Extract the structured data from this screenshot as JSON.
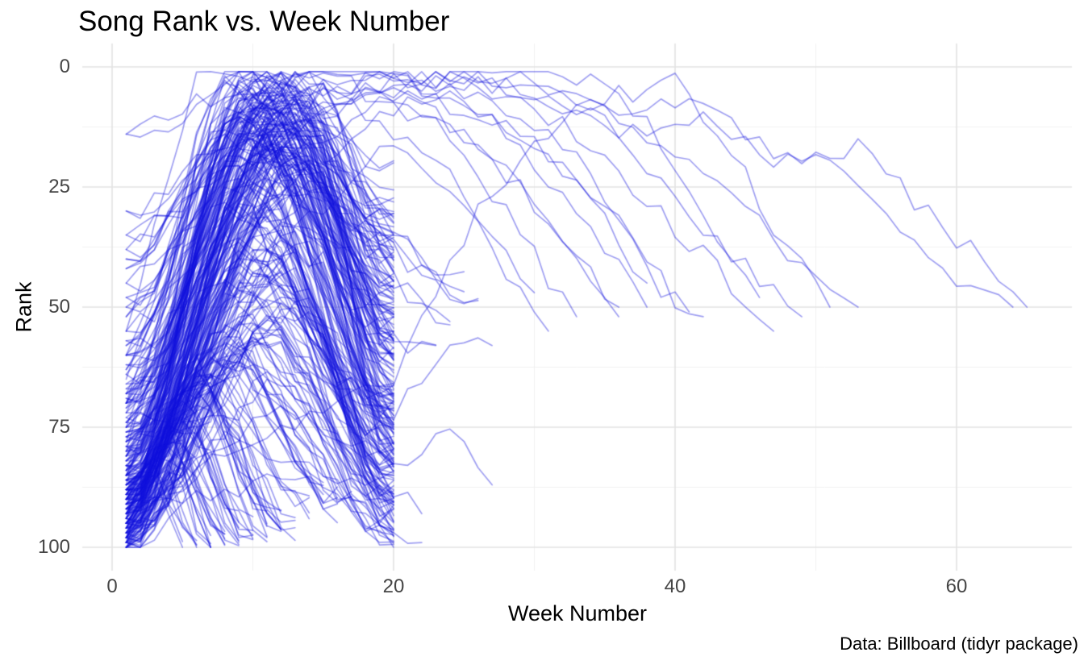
{
  "chart": {
    "title": "Song Rank vs. Week Number",
    "x_axis_title": "Week Number",
    "y_axis_title": "Rank",
    "caption": "Data: Billboard (tidyr package)"
  },
  "chart_data": {
    "type": "line",
    "title": "Song Rank vs. Week Number",
    "xlabel": "Week Number",
    "ylabel": "Rank",
    "caption": "Data: Billboard (tidyr package)",
    "legend": "none",
    "grid": "on",
    "x_axis": {
      "ticks": [
        0,
        20,
        40,
        60
      ],
      "minor_ticks": [
        10,
        30,
        50
      ],
      "range": [
        -2.2,
        68.2
      ]
    },
    "y_axis": {
      "ticks": [
        0,
        25,
        50,
        75,
        100
      ],
      "minor_ticks": [
        12.5,
        37.5,
        62.5,
        87.5
      ],
      "range": [
        -5,
        105
      ],
      "reversed": true
    },
    "line_color": "#1010DC",
    "line_alpha": 0.4,
    "grid_major_color": "#E3E3E3",
    "grid_minor_color": "#F0F0F0",
    "background_color": "#FFFFFF",
    "description": "Each line is one song's weekly Billboard rank trajectory (rank 1 = top). Most songs drop off at week 20; a few long-running hits persist to week 65, exiting near rank 50.",
    "songs_compact_format": "[entry_rank, peak_rank, peak_week, exit_rank, exit_week] - weekly ranks interpolated between these anchor values",
    "songs_compact": [
      [
        81,
        1,
        9,
        62,
        20
      ],
      [
        76,
        2,
        12,
        55,
        20
      ],
      [
        90,
        3,
        8,
        70,
        20
      ],
      [
        68,
        1,
        14,
        38,
        20
      ],
      [
        85,
        4,
        10,
        72,
        20
      ],
      [
        72,
        2,
        11,
        50,
        20
      ],
      [
        95,
        5,
        9,
        80,
        20
      ],
      [
        60,
        3,
        13,
        45,
        20
      ],
      [
        78,
        1,
        10,
        58,
        20
      ],
      [
        88,
        6,
        12,
        75,
        20
      ],
      [
        70,
        2,
        8,
        52,
        20
      ],
      [
        83,
        4,
        14,
        60,
        20
      ],
      [
        66,
        1,
        11,
        40,
        20
      ],
      [
        92,
        7,
        9,
        85,
        20
      ],
      [
        74,
        3,
        12,
        57,
        20
      ],
      [
        64,
        5,
        15,
        42,
        20
      ],
      [
        87,
        2,
        10,
        66,
        20
      ],
      [
        79,
        6,
        13,
        70,
        20
      ],
      [
        85,
        12,
        9,
        70,
        20
      ],
      [
        92,
        18,
        11,
        88,
        20
      ],
      [
        77,
        15,
        12,
        65,
        20
      ],
      [
        96,
        22,
        10,
        90,
        20
      ],
      [
        70,
        11,
        8,
        55,
        20
      ],
      [
        88,
        25,
        13,
        80,
        20
      ],
      [
        82,
        14,
        10,
        72,
        20
      ],
      [
        98,
        30,
        9,
        95,
        20
      ],
      [
        75,
        19,
        14,
        62,
        20
      ],
      [
        90,
        16,
        11,
        78,
        20
      ],
      [
        68,
        13,
        12,
        50,
        20
      ],
      [
        94,
        28,
        10,
        85,
        20
      ],
      [
        80,
        21,
        9,
        74,
        20
      ],
      [
        73,
        17,
        13,
        58,
        20
      ],
      [
        97,
        33,
        11,
        92,
        20
      ],
      [
        86,
        24,
        12,
        76,
        20
      ],
      [
        71,
        12,
        10,
        60,
        20
      ],
      [
        89,
        27,
        8,
        82,
        20
      ],
      [
        78,
        20,
        14,
        68,
        20
      ],
      [
        93,
        15,
        9,
        84,
        20
      ],
      [
        67,
        18,
        11,
        48,
        20
      ],
      [
        99,
        35,
        12,
        96,
        20
      ],
      [
        84,
        23,
        10,
        73,
        20
      ],
      [
        76,
        13,
        13,
        63,
        20
      ],
      [
        91,
        29,
        9,
        87,
        20
      ],
      [
        69,
        16,
        12,
        54,
        20
      ],
      [
        95,
        31,
        11,
        90,
        20
      ],
      [
        81,
        22,
        8,
        70,
        20
      ],
      [
        74,
        14,
        10,
        59,
        20
      ],
      [
        87,
        26,
        13,
        79,
        20
      ],
      [
        90,
        42,
        9,
        85,
        20
      ],
      [
        96,
        55,
        11,
        93,
        20
      ],
      [
        83,
        38,
        10,
        76,
        20
      ],
      [
        99,
        60,
        8,
        97,
        20
      ],
      [
        87,
        45,
        12,
        80,
        20
      ],
      [
        93,
        52,
        9,
        90,
        20
      ],
      [
        79,
        36,
        13,
        70,
        20
      ],
      [
        97,
        58,
        10,
        94,
        20
      ],
      [
        85,
        40,
        11,
        78,
        20
      ],
      [
        91,
        48,
        12,
        86,
        20
      ],
      [
        100,
        63,
        9,
        98,
        20
      ],
      [
        88,
        44,
        10,
        82,
        20
      ],
      [
        94,
        50,
        13,
        91,
        20
      ],
      [
        81,
        37,
        8,
        73,
        20
      ],
      [
        98,
        56,
        11,
        95,
        20
      ],
      [
        86,
        43,
        12,
        80,
        20
      ],
      [
        92,
        47,
        9,
        88,
        20
      ],
      [
        77,
        39,
        14,
        68,
        20
      ],
      [
        95,
        53,
        10,
        92,
        20
      ],
      [
        89,
        41,
        11,
        84,
        20
      ],
      [
        100,
        65,
        12,
        99,
        20
      ],
      [
        84,
        46,
        8,
        77,
        20
      ],
      [
        96,
        51,
        13,
        93,
        20
      ],
      [
        80,
        38,
        9,
        72,
        20
      ],
      [
        99,
        59,
        10,
        96,
        20
      ],
      [
        95,
        72,
        5,
        98,
        9
      ],
      [
        90,
        68,
        6,
        95,
        12
      ],
      [
        98,
        80,
        4,
        100,
        7
      ],
      [
        88,
        65,
        7,
        92,
        14
      ],
      [
        93,
        75,
        5,
        97,
        10
      ],
      [
        97,
        70,
        6,
        99,
        11
      ],
      [
        85,
        62,
        8,
        90,
        15
      ],
      [
        99,
        85,
        3,
        100,
        6
      ],
      [
        91,
        66,
        7,
        96,
        13
      ],
      [
        96,
        78,
        5,
        99,
        9
      ],
      [
        87,
        60,
        8,
        93,
        16
      ],
      [
        94,
        73,
        4,
        98,
        8
      ],
      [
        89,
        64,
        6,
        94,
        12
      ],
      [
        100,
        82,
        5,
        100,
        7
      ],
      [
        92,
        70,
        7,
        97,
        13
      ],
      [
        86,
        58,
        9,
        91,
        17
      ],
      [
        98,
        76,
        4,
        100,
        8
      ],
      [
        90,
        63,
        6,
        95,
        11
      ],
      [
        95,
        74,
        5,
        98,
        10
      ],
      [
        83,
        55,
        8,
        88,
        15
      ],
      [
        97,
        79,
        4,
        99,
        7
      ],
      [
        91,
        67,
        6,
        96,
        12
      ],
      [
        88,
        61,
        7,
        92,
        14
      ],
      [
        99,
        83,
        3,
        100,
        5
      ],
      [
        93,
        71,
        5,
        97,
        9
      ],
      [
        85,
        57,
        8,
        90,
        16
      ],
      [
        96,
        77,
        4,
        99,
        8
      ],
      [
        89,
        62,
        6,
        93,
        11
      ],
      [
        94,
        69,
        5,
        96,
        10
      ],
      [
        100,
        86,
        4,
        100,
        6
      ],
      [
        55,
        8,
        12,
        35,
        20
      ],
      [
        48,
        15,
        10,
        40,
        20
      ],
      [
        62,
        10,
        13,
        44,
        20
      ],
      [
        40,
        6,
        11,
        30,
        20
      ],
      [
        58,
        12,
        9,
        46,
        20
      ],
      [
        35,
        9,
        14,
        28,
        20
      ],
      [
        52,
        7,
        10,
        38,
        20
      ],
      [
        45,
        11,
        12,
        33,
        20
      ],
      [
        63,
        14,
        8,
        50,
        20
      ],
      [
        30,
        5,
        13,
        22,
        20
      ],
      [
        57,
        9,
        11,
        41,
        20
      ],
      [
        42,
        13,
        9,
        36,
        20
      ],
      [
        50,
        6,
        12,
        29,
        20
      ],
      [
        38,
        10,
        10,
        31,
        20
      ],
      [
        60,
        8,
        14,
        47,
        20
      ],
      [
        14,
        2,
        11,
        34,
        20
      ],
      [
        82,
        20,
        12,
        52,
        24
      ],
      [
        75,
        18,
        10,
        48,
        26
      ],
      [
        88,
        30,
        11,
        60,
        23
      ],
      [
        70,
        16,
        13,
        45,
        25
      ],
      [
        97,
        10,
        13,
        55,
        20
      ],
      [
        89,
        8,
        11,
        48,
        20
      ],
      [
        94,
        20,
        14,
        75,
        20
      ],
      [
        99,
        25,
        15,
        85,
        20
      ],
      [
        93,
        12,
        12,
        62,
        20
      ],
      [
        86,
        7,
        10,
        45,
        20
      ],
      [
        98,
        16,
        13,
        72,
        20
      ],
      [
        91,
        9,
        12,
        52,
        20
      ],
      [
        95,
        14,
        11,
        68,
        20
      ],
      [
        88,
        11,
        14,
        58,
        20
      ],
      [
        100,
        18,
        13,
        78,
        20
      ],
      [
        90,
        6,
        11,
        50,
        20
      ]
    ],
    "songs_paths_format": "list of [week, rank] anchor points per long-running song; weekly ranks interpolated",
    "songs_paths": [
      [
        [
          1,
          90
        ],
        [
          10,
          55
        ],
        [
          20,
          72
        ],
        [
          25,
          57
        ],
        [
          27,
          58
        ]
      ],
      [
        [
          1,
          95
        ],
        [
          12,
          70
        ],
        [
          20,
          83
        ],
        [
          24,
          75
        ],
        [
          27,
          87
        ]
      ],
      [
        [
          1,
          98
        ],
        [
          8,
          78
        ],
        [
          20,
          88
        ],
        [
          22,
          93
        ]
      ],
      [
        [
          1,
          92
        ],
        [
          14,
          85
        ],
        [
          20,
          97
        ],
        [
          22,
          99
        ]
      ],
      [
        [
          1,
          87
        ],
        [
          8,
          25
        ],
        [
          14,
          5
        ],
        [
          22,
          2
        ],
        [
          30,
          4
        ],
        [
          38,
          10
        ],
        [
          41,
          6
        ],
        [
          48,
          20
        ],
        [
          53,
          17
        ],
        [
          57,
          28
        ],
        [
          61,
          38
        ],
        [
          65,
          50
        ]
      ],
      [
        [
          1,
          70
        ],
        [
          9,
          12
        ],
        [
          18,
          3
        ],
        [
          28,
          2
        ],
        [
          35,
          8
        ],
        [
          40,
          18
        ],
        [
          45,
          30
        ],
        [
          50,
          44
        ],
        [
          53,
          50
        ]
      ],
      [
        [
          1,
          80
        ],
        [
          10,
          8
        ],
        [
          20,
          2
        ],
        [
          30,
          5
        ],
        [
          36,
          15
        ],
        [
          42,
          33
        ],
        [
          46,
          45
        ],
        [
          49,
          52
        ]
      ],
      [
        [
          1,
          65
        ],
        [
          7,
          10
        ],
        [
          15,
          1
        ],
        [
          25,
          3
        ],
        [
          32,
          12
        ],
        [
          38,
          28
        ],
        [
          43,
          42
        ],
        [
          47,
          55
        ]
      ],
      [
        [
          1,
          90
        ],
        [
          12,
          20
        ],
        [
          20,
          6
        ],
        [
          27,
          10
        ],
        [
          33,
          22
        ],
        [
          37,
          35
        ],
        [
          40,
          48
        ],
        [
          42,
          52
        ]
      ],
      [
        [
          1,
          75
        ],
        [
          10,
          5
        ],
        [
          18,
          1
        ],
        [
          26,
          8
        ],
        [
          31,
          18
        ],
        [
          35,
          32
        ],
        [
          38,
          45
        ]
      ],
      [
        [
          1,
          85
        ],
        [
          11,
          15
        ],
        [
          19,
          4
        ],
        [
          24,
          12
        ],
        [
          29,
          25
        ],
        [
          33,
          40
        ],
        [
          36,
          50
        ]
      ],
      [
        [
          1,
          60
        ],
        [
          8,
          6
        ],
        [
          16,
          2
        ],
        [
          24,
          14
        ],
        [
          28,
          30
        ],
        [
          31,
          44
        ],
        [
          33,
          52
        ]
      ],
      [
        [
          1,
          78
        ],
        [
          9,
          18
        ],
        [
          17,
          8
        ],
        [
          23,
          20
        ],
        [
          27,
          34
        ],
        [
          30,
          47
        ]
      ],
      [
        [
          1,
          95
        ],
        [
          13,
          35
        ],
        [
          20,
          15
        ],
        [
          25,
          28
        ],
        [
          28,
          42
        ],
        [
          31,
          55
        ]
      ],
      [
        [
          1,
          98
        ],
        [
          8,
          80
        ],
        [
          15,
          72
        ],
        [
          20,
          65
        ],
        [
          26,
          30
        ],
        [
          33,
          8
        ],
        [
          40,
          3
        ],
        [
          44,
          18
        ],
        [
          48,
          38
        ],
        [
          51,
          50
        ]
      ],
      [
        [
          1,
          72
        ],
        [
          10,
          10
        ],
        [
          20,
          3
        ],
        [
          28,
          1
        ],
        [
          34,
          2
        ],
        [
          38,
          12
        ],
        [
          41,
          25
        ],
        [
          44,
          40
        ],
        [
          46,
          48
        ]
      ],
      [
        [
          1,
          68
        ],
        [
          12,
          14
        ],
        [
          20,
          5
        ],
        [
          26,
          16
        ],
        [
          30,
          28
        ],
        [
          34,
          45
        ],
        [
          36,
          52
        ]
      ],
      [
        [
          1,
          82
        ],
        [
          11,
          28
        ],
        [
          19,
          9
        ],
        [
          25,
          6
        ],
        [
          30,
          20
        ],
        [
          35,
          38
        ],
        [
          38,
          50
        ]
      ],
      [
        [
          1,
          55
        ],
        [
          6,
          3
        ],
        [
          12,
          1
        ],
        [
          20,
          2
        ],
        [
          27,
          7
        ],
        [
          32,
          16
        ],
        [
          36,
          30
        ],
        [
          39,
          46
        ],
        [
          41,
          51
        ]
      ],
      [
        [
          1,
          84
        ],
        [
          9,
          22
        ],
        [
          16,
          6
        ],
        [
          24,
          3
        ],
        [
          31,
          6
        ],
        [
          37,
          14
        ],
        [
          43,
          11
        ],
        [
          47,
          21
        ],
        [
          50,
          18
        ],
        [
          55,
          30
        ],
        [
          59,
          42
        ],
        [
          64,
          50
        ]
      ]
    ]
  }
}
